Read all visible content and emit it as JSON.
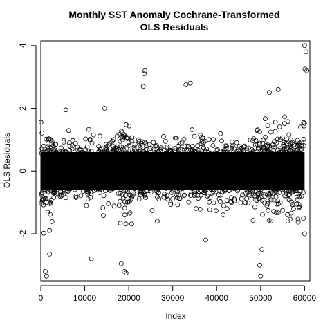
{
  "chart_data": {
    "type": "scatter",
    "title_line1": "Monthly SST Anomaly Cochrane-Transformed",
    "title_line2": "OLS Residuals",
    "xlabel": "Index",
    "ylabel": "OLS Residuals",
    "xlim": [
      0,
      61200
    ],
    "ylim": [
      -3.5,
      4.15
    ],
    "xticks": [
      0,
      10000,
      20000,
      30000,
      40000,
      50000,
      60000
    ],
    "xtick_labels": [
      "0",
      "10000",
      "20000",
      "30000",
      "40000",
      "50000",
      "60000"
    ],
    "yticks": [
      -2,
      0,
      2,
      4
    ],
    "ytick_labels": [
      "-2",
      "0",
      "2",
      "4"
    ],
    "marker": "open-circle",
    "n_points_approx": 60000,
    "bulk_band": {
      "lower": -0.6,
      "upper": 0.6
    },
    "outliers": [
      {
        "x": 60000,
        "y": 4.0
      },
      {
        "x": 60300,
        "y": 3.8
      },
      {
        "x": 60100,
        "y": 3.25
      },
      {
        "x": 60500,
        "y": 3.2
      },
      {
        "x": 23700,
        "y": 3.2
      },
      {
        "x": 23500,
        "y": 3.1
      },
      {
        "x": 23300,
        "y": 2.7
      },
      {
        "x": 34000,
        "y": 2.8
      },
      {
        "x": 33000,
        "y": 2.75
      },
      {
        "x": 54000,
        "y": 2.6
      },
      {
        "x": 52000,
        "y": 2.5
      },
      {
        "x": 5700,
        "y": 1.95
      },
      {
        "x": 14500,
        "y": 2.0
      },
      {
        "x": 1000,
        "y": -3.2
      },
      {
        "x": 1300,
        "y": -3.35
      },
      {
        "x": 19000,
        "y": -3.2
      },
      {
        "x": 19400,
        "y": -3.25
      },
      {
        "x": 18300,
        "y": -2.95
      },
      {
        "x": 50000,
        "y": -3.35
      },
      {
        "x": 49800,
        "y": -3.0
      },
      {
        "x": 50300,
        "y": -2.5
      },
      {
        "x": 11500,
        "y": -2.8
      },
      {
        "x": 2000,
        "y": -2.65
      },
      {
        "x": 37500,
        "y": -2.2
      },
      {
        "x": 60000,
        "y": -2.0
      },
      {
        "x": 26500,
        "y": -1.6
      }
    ]
  }
}
